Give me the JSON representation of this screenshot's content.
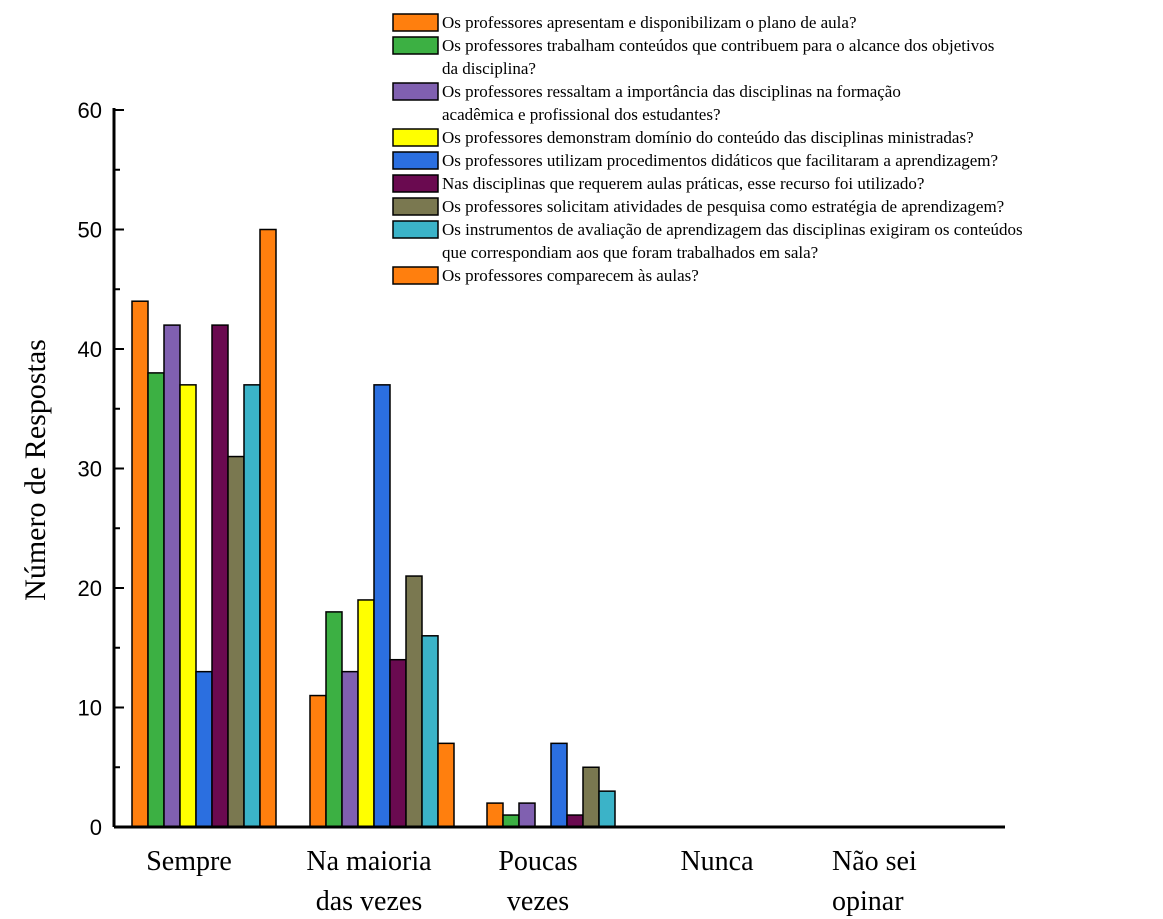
{
  "chart_data": {
    "type": "bar",
    "ylabel": "Número de Respostas",
    "xlabel": "",
    "title": "",
    "ylim": [
      0,
      60
    ],
    "y_ticks": [
      "0",
      "10",
      "20",
      "30",
      "40",
      "50",
      "60"
    ],
    "legend_position": "top-right",
    "categories": [
      [
        "Sempre"
      ],
      [
        "Na maioria",
        "das vezes"
      ],
      [
        "Poucas",
        "vezes"
      ],
      [
        "Nunca"
      ],
      [
        "Não sei",
        "opinar"
      ]
    ],
    "series": [
      {
        "name_lines": [
          "Os professores apresentam e disponibilizam o plano de aula?"
        ],
        "color": "#FF7F0E",
        "values": [
          44,
          11,
          2,
          0,
          0
        ]
      },
      {
        "name_lines": [
          "Os professores trabalham conteúdos que contribuem para o alcance dos objetivos",
          "da disciplina?"
        ],
        "color": "#3CB043",
        "values": [
          38,
          18,
          1,
          0,
          0
        ]
      },
      {
        "name_lines": [
          " Os professores ressaltam a importância das disciplinas na formação",
          " acadêmica e profissional dos estudantes?"
        ],
        "color": "#8060B0",
        "values": [
          42,
          13,
          2,
          0,
          0
        ]
      },
      {
        "name_lines": [
          "Os professores demonstram domínio do conteúdo das disciplinas ministradas?"
        ],
        "color": "#FFFF00",
        "values": [
          37,
          19,
          0,
          0,
          0
        ]
      },
      {
        "name_lines": [
          "Os professores utilizam procedimentos didáticos que facilitaram a aprendizagem?"
        ],
        "color": "#2B6FE0",
        "values": [
          13,
          37,
          7,
          0,
          0
        ]
      },
      {
        "name_lines": [
          "Nas disciplinas que requerem aulas práticas, esse recurso foi utilizado?"
        ],
        "color": "#6A0A50",
        "values": [
          42,
          14,
          1,
          0,
          0
        ]
      },
      {
        "name_lines": [
          "Os professores solicitam atividades de pesquisa como estratégia de aprendizagem?"
        ],
        "color": "#7A7850",
        "values": [
          31,
          21,
          5,
          0,
          0
        ]
      },
      {
        "name_lines": [
          "Os instrumentos de avaliação de aprendizagem das disciplinas exigiram os conteúdos",
          "que correspondiam aos que foram trabalhados em sala?"
        ],
        "color": "#3BB3C8",
        "values": [
          37,
          16,
          3,
          0,
          0
        ]
      },
      {
        "name_lines": [
          "Os professores comparecem às aulas?"
        ],
        "color": "#FF7F0E",
        "values": [
          50,
          7,
          0,
          0,
          0
        ]
      }
    ]
  }
}
